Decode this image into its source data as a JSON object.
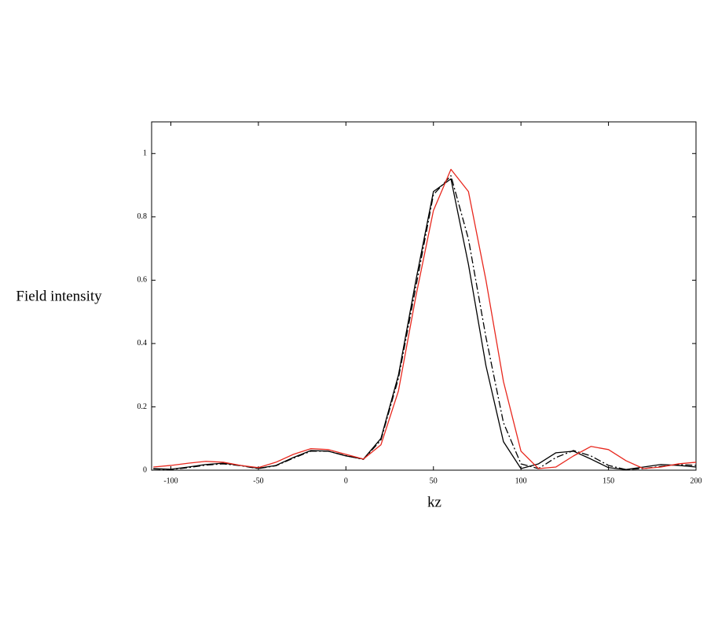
{
  "chart_data": {
    "type": "line",
    "xlabel": "kz",
    "ylabel": "Field intensity",
    "x": [
      -110,
      -100,
      -90,
      -80,
      -70,
      -60,
      -50,
      -40,
      -30,
      -20,
      -10,
      0,
      10,
      20,
      30,
      40,
      50,
      60,
      70,
      80,
      90,
      100,
      110,
      120,
      130,
      140,
      150,
      160,
      170,
      180,
      190,
      200
    ],
    "series": [
      {
        "color": "#000000",
        "style": "solid",
        "values": [
          0.005,
          0.003,
          0.01,
          0.018,
          0.022,
          0.015,
          0.006,
          0.015,
          0.04,
          0.062,
          0.06,
          0.045,
          0.035,
          0.1,
          0.3,
          0.6,
          0.88,
          0.92,
          0.65,
          0.33,
          0.09,
          0.005,
          0.02,
          0.055,
          0.06,
          0.035,
          0.008,
          0.002,
          0.01,
          0.018,
          0.015,
          0.01
        ]
      },
      {
        "color": "#000000",
        "style": "dash-dot",
        "values": [
          0.004,
          0.002,
          0.008,
          0.016,
          0.02,
          0.014,
          0.005,
          0.014,
          0.038,
          0.06,
          0.06,
          0.046,
          0.034,
          0.095,
          0.29,
          0.58,
          0.87,
          0.93,
          0.73,
          0.42,
          0.15,
          0.02,
          0.005,
          0.04,
          0.062,
          0.045,
          0.015,
          0.002,
          0.005,
          0.012,
          0.018,
          0.015
        ]
      },
      {
        "color": "#e8281e",
        "style": "solid",
        "values": [
          0.01,
          0.015,
          0.022,
          0.028,
          0.025,
          0.015,
          0.008,
          0.025,
          0.05,
          0.068,
          0.065,
          0.05,
          0.035,
          0.08,
          0.25,
          0.55,
          0.82,
          0.95,
          0.88,
          0.6,
          0.28,
          0.06,
          0.005,
          0.01,
          0.045,
          0.075,
          0.065,
          0.03,
          0.005,
          0.01,
          0.02,
          0.025
        ]
      }
    ],
    "xlim": [
      -111,
      200
    ],
    "ylim": [
      0,
      1.1
    ],
    "xticks": [
      -100,
      -50,
      0,
      50,
      100,
      150,
      200
    ],
    "yticks": [
      0,
      0.2,
      0.4,
      0.6,
      0.8,
      1
    ]
  }
}
